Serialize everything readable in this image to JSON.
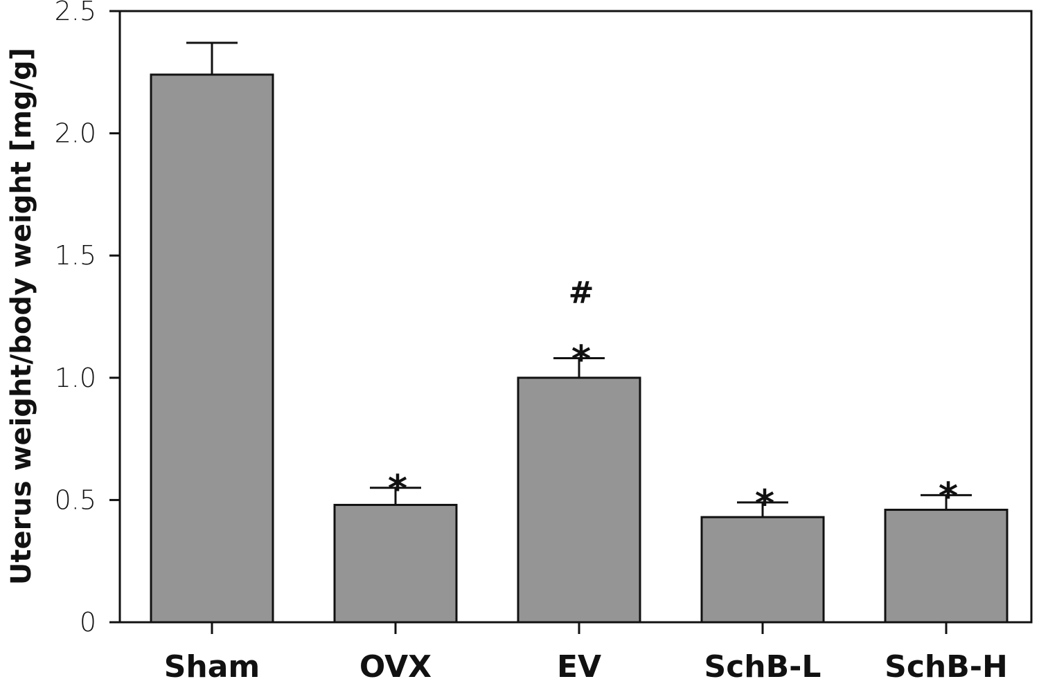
{
  "chart_data": {
    "type": "bar",
    "title": "",
    "xlabel": "",
    "ylabel": "Uterus weight/body weight [mg/g]",
    "ylim": [
      0,
      2.5
    ],
    "yticks": [
      "0",
      "0.5",
      "1.0",
      "1.5",
      "2.0",
      "2.5"
    ],
    "categories": [
      "Sham",
      "OVX",
      "EV",
      "SchB-L",
      "SchB-H"
    ],
    "values": [
      2.24,
      0.48,
      1.0,
      0.43,
      0.46
    ],
    "errors": [
      0.13,
      0.07,
      0.08,
      0.06,
      0.06
    ],
    "annotations": [
      {
        "category": "OVX",
        "marks": [
          "*"
        ]
      },
      {
        "category": "EV",
        "marks": [
          "*",
          "#"
        ]
      },
      {
        "category": "SchB-L",
        "marks": [
          "*"
        ]
      },
      {
        "category": "SchB-H",
        "marks": [
          "*"
        ]
      }
    ],
    "bar_color": "#959595",
    "edge_color": "#111111",
    "grid": false,
    "legend": "none"
  }
}
